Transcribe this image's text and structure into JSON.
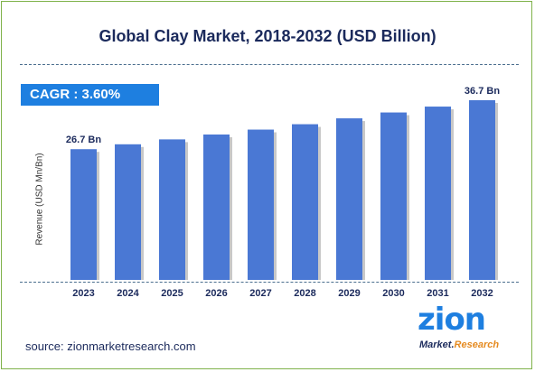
{
  "header": {
    "title": "Global Clay Market, 2018-2032 (USD Billion)"
  },
  "cagr": "CAGR : 3.60%",
  "footer": {
    "source": "source: zionmarketresearch.com"
  },
  "logo": {
    "main": "zion",
    "sub_a": "Market.",
    "sub_b": "Research"
  },
  "colors": {
    "bar": "#4a78d4",
    "bar_shadow": "#c8c8c8",
    "cagr_box": "#1e7fe0",
    "title": "#1b2a5c",
    "frame": "#7fb24a"
  },
  "chart_data": {
    "type": "bar",
    "title": "Global Clay Market, 2018-2032 (USD Billion)",
    "xlabel": "",
    "ylabel": "Revenue (USD Mn/Bn)",
    "categories": [
      "2023",
      "2024",
      "2025",
      "2026",
      "2027",
      "2028",
      "2029",
      "2030",
      "2031",
      "2032"
    ],
    "values": [
      26.7,
      27.7,
      28.7,
      29.7,
      30.7,
      31.8,
      33.0,
      34.2,
      35.4,
      36.7
    ],
    "data_labels": [
      {
        "index": 0,
        "text": "26.7 Bn"
      },
      {
        "index": 9,
        "text": "36.7 Bn"
      }
    ],
    "ylim": [
      0,
      36.7
    ],
    "grid": false,
    "legend": "none"
  }
}
